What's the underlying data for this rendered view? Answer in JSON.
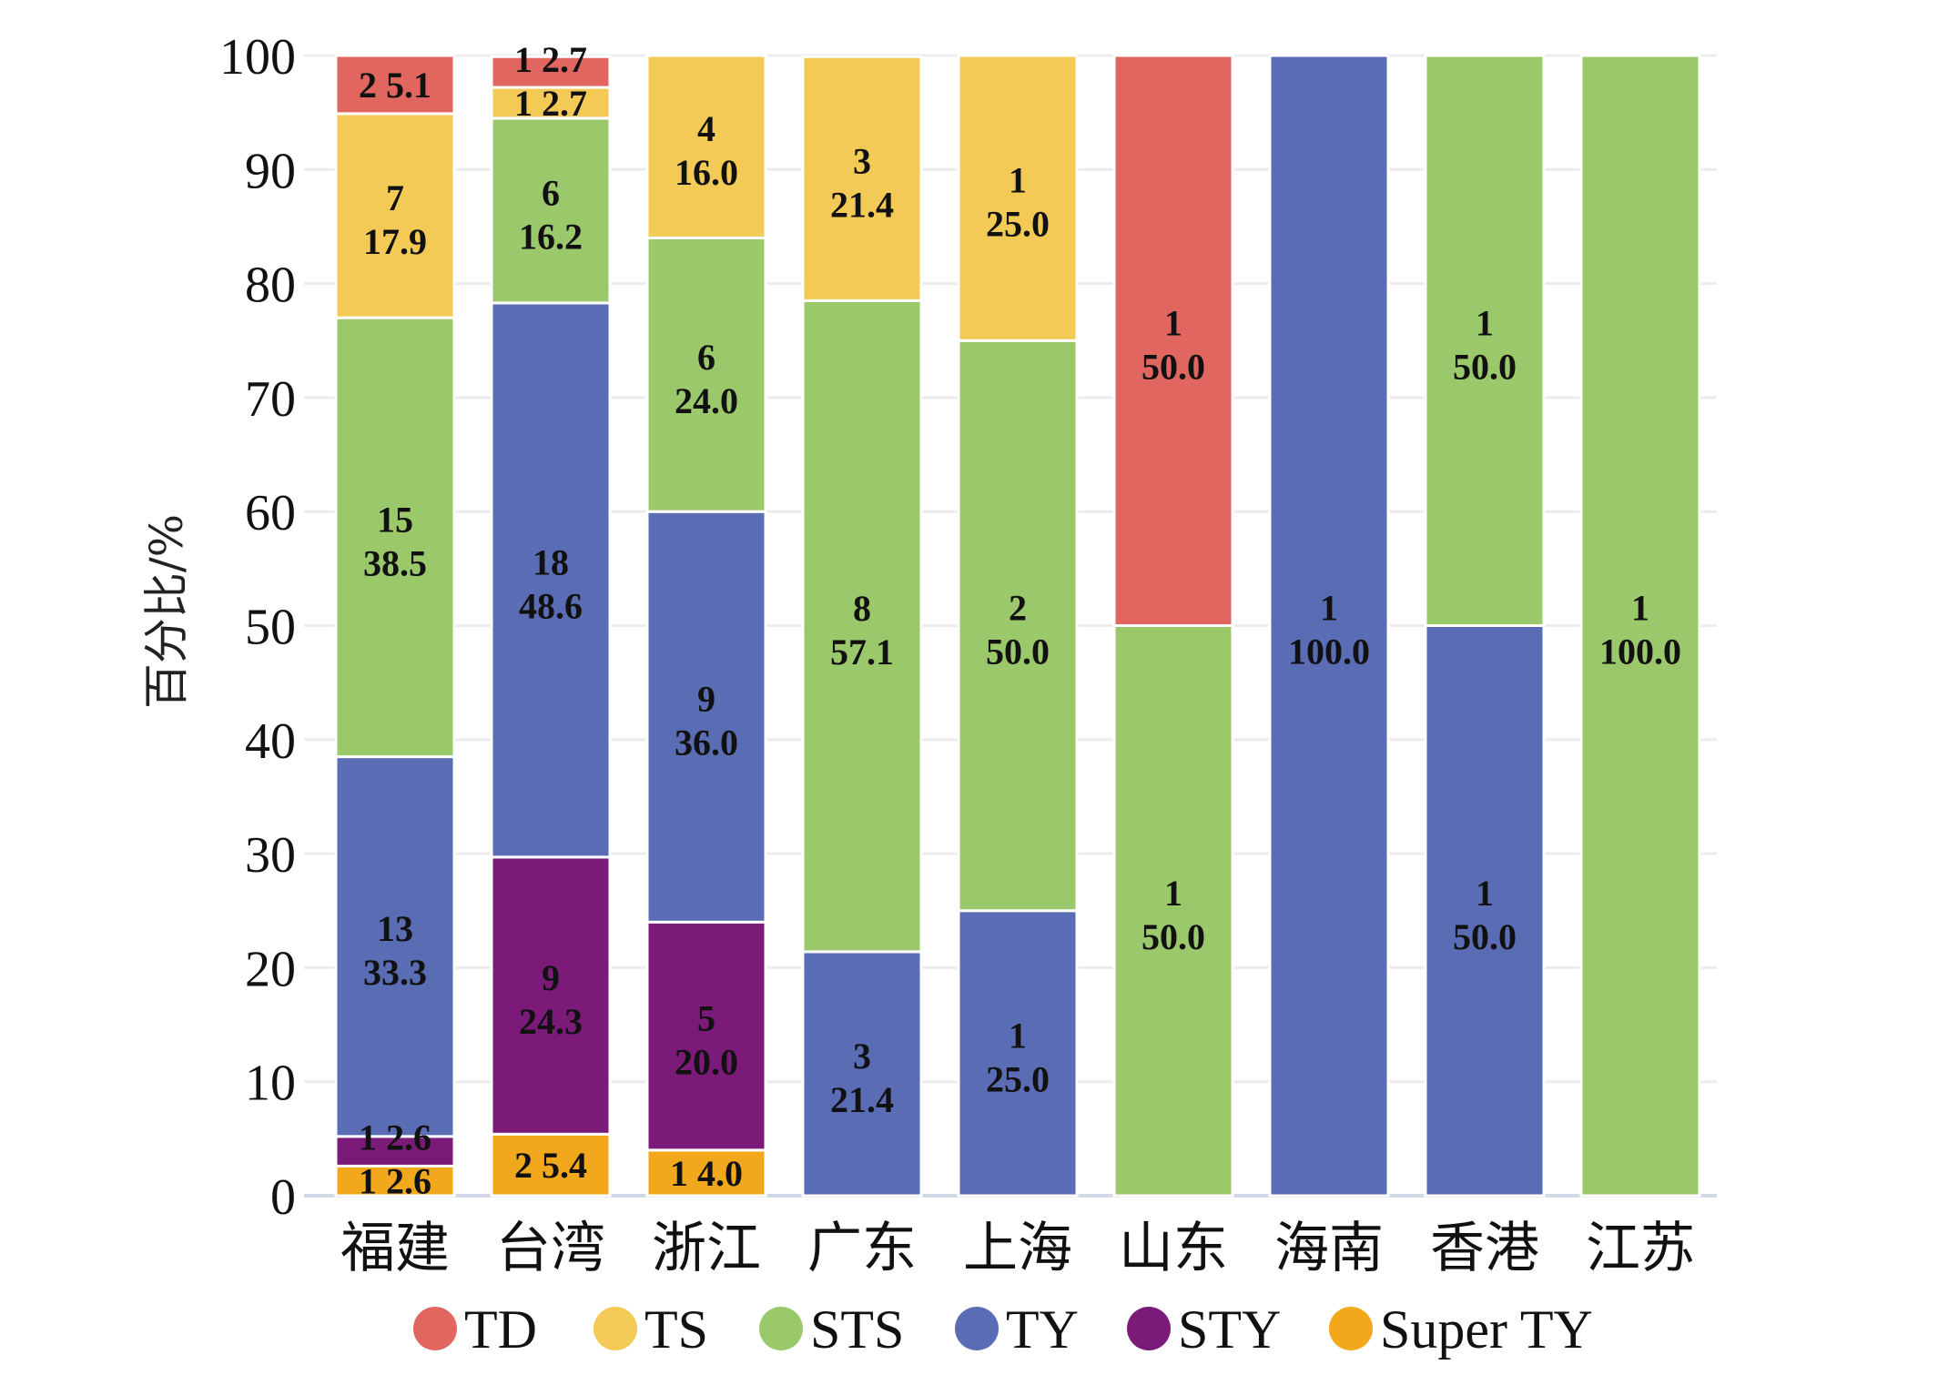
{
  "chart_data": {
    "type": "bar",
    "stacked": true,
    "title": "",
    "xlabel": "",
    "ylabel": "百分比/%",
    "ylim": [
      0,
      100
    ],
    "yticks": [
      "0",
      "10",
      "20",
      "30",
      "40",
      "50",
      "60",
      "70",
      "80",
      "90",
      "100"
    ],
    "grid": true,
    "legend_position": "bottom",
    "categories": [
      "福建",
      "台湾",
      "浙江",
      "广东",
      "上海",
      "山东",
      "海南",
      "香港",
      "江苏"
    ],
    "series": [
      {
        "name": "Super TY",
        "color": "#F2A81D",
        "counts": [
          1,
          2,
          1,
          0,
          0,
          0,
          0,
          0,
          0
        ],
        "values": [
          2.6,
          5.4,
          4.0,
          0,
          0,
          0,
          0,
          0,
          0
        ]
      },
      {
        "name": "STY",
        "color": "#7B1A78",
        "counts": [
          1,
          9,
          5,
          0,
          0,
          0,
          0,
          0,
          0
        ],
        "values": [
          2.6,
          24.3,
          20.0,
          0,
          0,
          0,
          0,
          0,
          0
        ]
      },
      {
        "name": "TY",
        "color": "#5A6CB3",
        "counts": [
          13,
          18,
          9,
          3,
          1,
          0,
          1,
          1,
          0
        ],
        "values": [
          33.3,
          48.6,
          36.0,
          21.4,
          25.0,
          0,
          100.0,
          50.0,
          0
        ]
      },
      {
        "name": "STS",
        "color": "#9BC86B",
        "counts": [
          15,
          6,
          6,
          8,
          2,
          1,
          0,
          1,
          1
        ],
        "values": [
          38.5,
          16.2,
          24.0,
          57.1,
          50.0,
          50.0,
          0,
          50.0,
          100.0
        ]
      },
      {
        "name": "TS",
        "color": "#F4CA57",
        "counts": [
          7,
          1,
          4,
          3,
          1,
          0,
          0,
          0,
          0
        ],
        "values": [
          17.9,
          2.7,
          16.0,
          21.4,
          25.0,
          0,
          0,
          0,
          0
        ]
      },
      {
        "name": "TD",
        "color": "#E0665F",
        "counts": [
          2,
          1,
          0,
          0,
          0,
          1,
          0,
          0,
          0
        ],
        "values": [
          5.1,
          2.7,
          0,
          0,
          0,
          50.0,
          0,
          0,
          0
        ]
      }
    ],
    "legend": [
      "TD",
      "TS",
      "STS",
      "TY",
      "STY",
      "Super TY"
    ]
  }
}
